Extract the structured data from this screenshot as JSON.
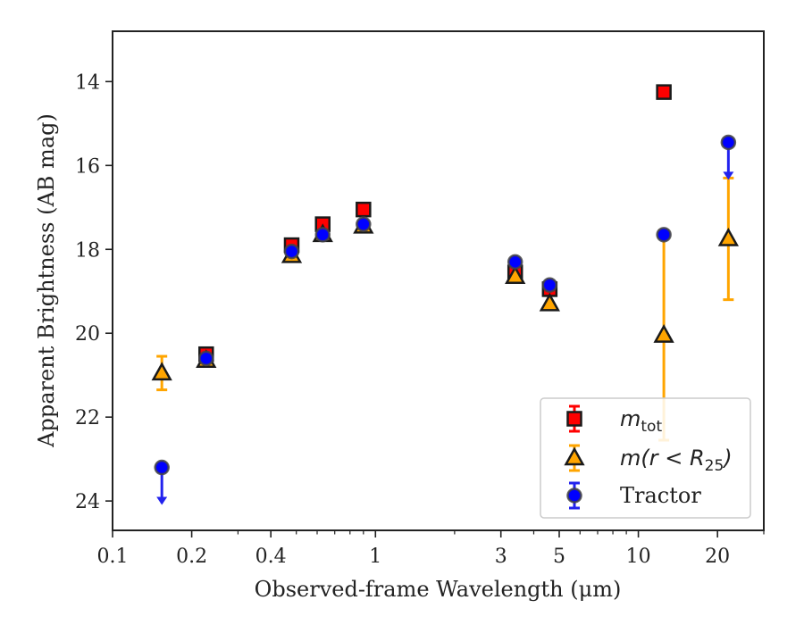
{
  "chart_data": {
    "type": "scatter",
    "xlabel": "Observed-frame Wavelength (μm)",
    "ylabel": "Apparent Brightness (AB mag)",
    "x_scale": "log",
    "xlim": [
      0.1,
      30
    ],
    "ylim": [
      24.7,
      12.8
    ],
    "y_inverted": true,
    "x_ticks": [
      {
        "value": 0.1,
        "label": "0.1"
      },
      {
        "value": 0.2,
        "label": "0.2"
      },
      {
        "value": 0.4,
        "label": "0.4"
      },
      {
        "value": 1,
        "label": "1"
      },
      {
        "value": 3,
        "label": "3"
      },
      {
        "value": 5,
        "label": "5"
      },
      {
        "value": 10,
        "label": "10"
      },
      {
        "value": 20,
        "label": "20"
      }
    ],
    "y_ticks": [
      {
        "value": 14,
        "label": "14"
      },
      {
        "value": 16,
        "label": "16"
      },
      {
        "value": 18,
        "label": "18"
      },
      {
        "value": 20,
        "label": "20"
      },
      {
        "value": 22,
        "label": "22"
      },
      {
        "value": 24,
        "label": "24"
      }
    ],
    "legend": {
      "placement": "lower-right",
      "entries": [
        {
          "series": 0,
          "label_main": "m",
          "label_sub": "tot",
          "label_rest": ""
        },
        {
          "series": 1,
          "label_main": "m(r < R",
          "label_sub": "25",
          "label_rest": ")"
        },
        {
          "series": 2,
          "label_main": "Tractor",
          "label_sub": "",
          "label_rest": ""
        }
      ]
    },
    "series": [
      {
        "marker": "square",
        "face_color": "#ff0000",
        "edge_color": "#1a1a1a",
        "err_color": "#ff0000",
        "points": [
          {
            "x": 0.227,
            "y": 20.5
          },
          {
            "x": 0.48,
            "y": 17.9
          },
          {
            "x": 0.63,
            "y": 17.4
          },
          {
            "x": 0.9,
            "y": 17.05
          },
          {
            "x": 3.4,
            "y": 18.55
          },
          {
            "x": 4.6,
            "y": 18.95
          },
          {
            "x": 12.5,
            "y": 14.25
          }
        ]
      },
      {
        "marker": "triangle",
        "face_color": "#ffa500",
        "edge_color": "#1a1a1a",
        "err_color": "#ffa500",
        "points": [
          {
            "x": 0.154,
            "y": 20.95,
            "yerr": 0.4
          },
          {
            "x": 0.227,
            "y": 20.65
          },
          {
            "x": 0.48,
            "y": 18.15
          },
          {
            "x": 0.63,
            "y": 17.65
          },
          {
            "x": 0.9,
            "y": 17.45
          },
          {
            "x": 3.4,
            "y": 18.65
          },
          {
            "x": 4.6,
            "y": 19.3
          },
          {
            "x": 12.5,
            "y": 20.05,
            "yerr": 2.5
          },
          {
            "x": 22,
            "y": 17.75,
            "yerr": 1.45
          }
        ]
      },
      {
        "marker": "circle",
        "face_color": "#0000ff",
        "edge_color": "#444444",
        "err_color": "#2222ee",
        "points": [
          {
            "x": 0.154,
            "y": 23.2,
            "upper_limit": true,
            "arrow_to": 24.05
          },
          {
            "x": 0.227,
            "y": 20.6
          },
          {
            "x": 0.48,
            "y": 18.05
          },
          {
            "x": 0.63,
            "y": 17.65
          },
          {
            "x": 0.9,
            "y": 17.4
          },
          {
            "x": 3.4,
            "y": 18.3
          },
          {
            "x": 4.6,
            "y": 18.85
          },
          {
            "x": 12.5,
            "y": 17.65
          },
          {
            "x": 22,
            "y": 15.45,
            "upper_limit": true,
            "arrow_to": 16.3
          }
        ]
      }
    ]
  }
}
